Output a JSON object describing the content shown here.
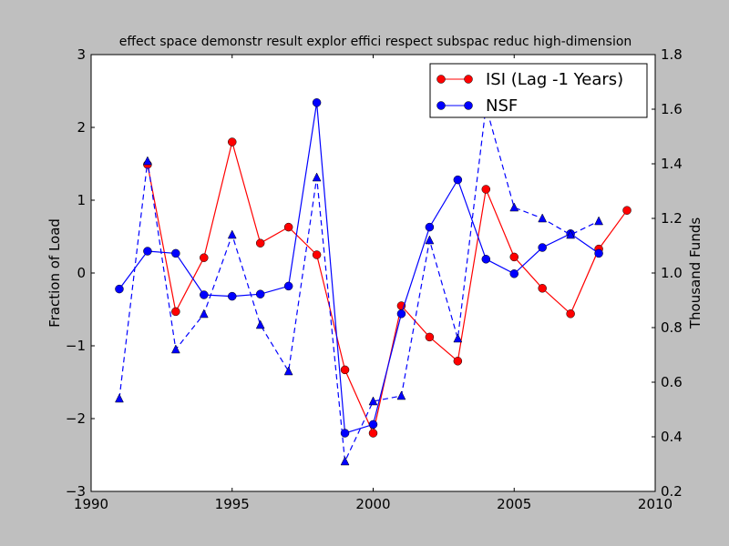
{
  "chart_data": {
    "type": "line",
    "title": "effect space demonstr result explor effici respect subspac reduc high-dimension",
    "xlabel": "",
    "ylabel": "Fraction of Load",
    "ylabel_right": "Thousand Funds",
    "xlim": [
      1990,
      2010
    ],
    "ylim": [
      -3,
      3
    ],
    "ylim_right": [
      0.2,
      1.8
    ],
    "xticks": [
      "1990",
      "1995",
      "2000",
      "2005",
      "2010"
    ],
    "xtick_values": [
      1990,
      1995,
      2000,
      2005,
      2010
    ],
    "yticks": [
      "−3",
      "−2",
      "−1",
      "0",
      "1",
      "2",
      "3"
    ],
    "ytick_values": [
      -3,
      -2,
      -1,
      0,
      1,
      2,
      3
    ],
    "yticks_right": [
      "0.2",
      "0.4",
      "0.6",
      "0.8",
      "1.0",
      "1.2",
      "1.4",
      "1.6",
      "1.8"
    ],
    "ytick_right_values": [
      0.2,
      0.4,
      0.6,
      0.8,
      1.0,
      1.2,
      1.4,
      1.6,
      1.8
    ],
    "legend_position": "top-right",
    "series": [
      {
        "name": "ISI (Lag -1 Years)",
        "color": "#ff0000",
        "axis": "left",
        "marker": "circle",
        "dashed": false,
        "in_legend": true,
        "x": [
          1992,
          1993,
          1994,
          1995,
          1996,
          1997,
          1998,
          1999,
          2000,
          2001,
          2002,
          2003,
          2004,
          2005,
          2006,
          2007,
          2008,
          2009
        ],
        "values": [
          1.49,
          -0.53,
          0.21,
          1.8,
          0.41,
          0.63,
          0.25,
          -1.33,
          -2.2,
          -0.45,
          -0.88,
          -1.21,
          1.15,
          0.22,
          -0.21,
          -0.56,
          0.33,
          0.86
        ]
      },
      {
        "name": "NSF",
        "color": "#0000ff",
        "axis": "left",
        "marker": "circle",
        "dashed": false,
        "in_legend": true,
        "x": [
          1991,
          1992,
          1993,
          1994,
          1995,
          1996,
          1997,
          1998,
          1999,
          2000,
          2001,
          2002,
          2003,
          2004,
          2005,
          2006,
          2007,
          2008
        ],
        "values": [
          -0.22,
          0.3,
          0.27,
          -0.3,
          -0.32,
          -0.29,
          -0.18,
          2.34,
          -2.2,
          -2.08,
          -0.56,
          0.63,
          1.28,
          0.19,
          -0.01,
          0.35,
          0.54,
          0.27
        ]
      },
      {
        "name": "NSF funds",
        "color": "#0000ff",
        "axis": "right",
        "marker": "triangle",
        "dashed": true,
        "in_legend": false,
        "x": [
          1991,
          1992,
          1993,
          1994,
          1995,
          1996,
          1997,
          1998,
          1999,
          2000,
          2001,
          2002,
          2003,
          2004,
          2005,
          2006,
          2007,
          2008
        ],
        "values": [
          0.54,
          1.41,
          0.72,
          0.85,
          1.14,
          0.81,
          0.64,
          1.35,
          0.31,
          0.53,
          0.55,
          1.12,
          0.76,
          1.61,
          1.24,
          1.2,
          1.14,
          1.19
        ]
      }
    ]
  }
}
